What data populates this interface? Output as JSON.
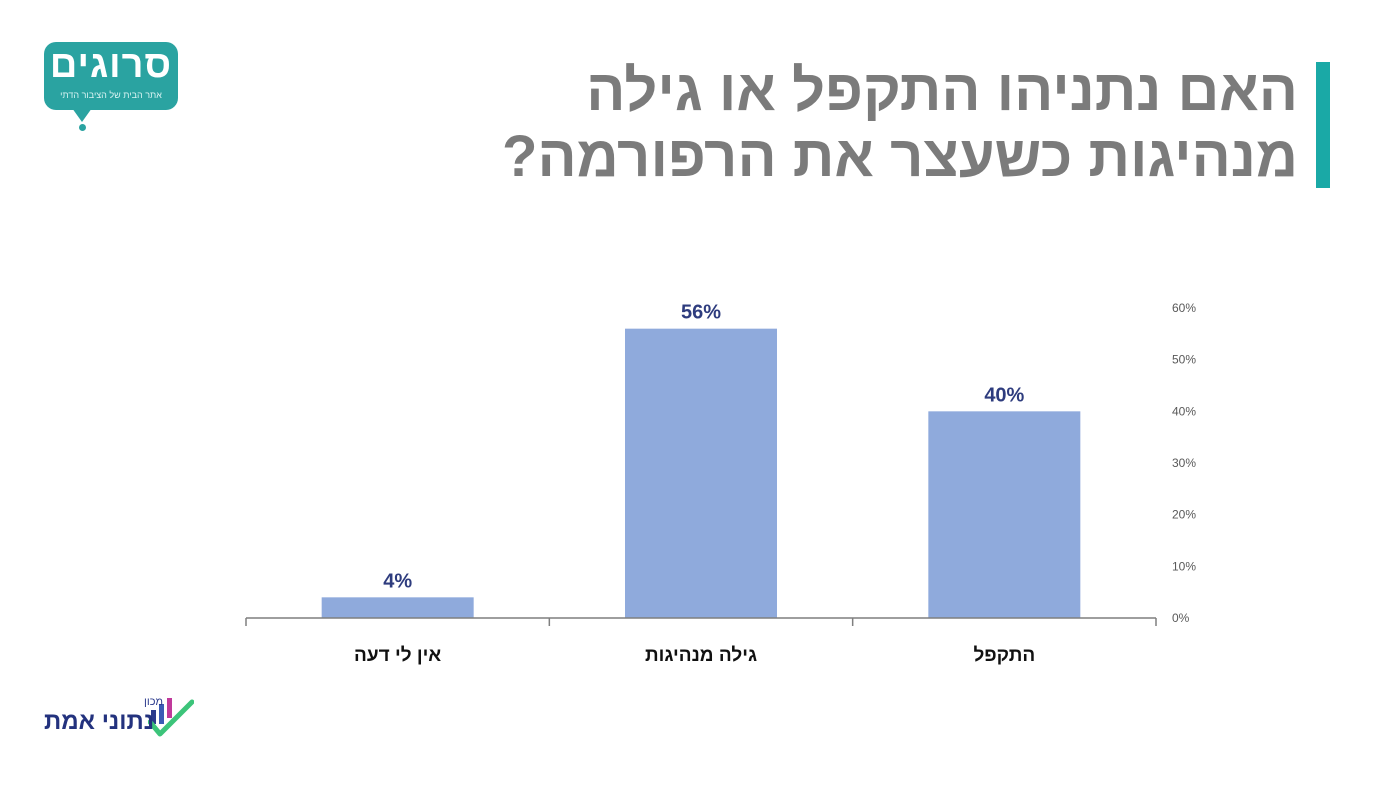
{
  "title": {
    "line1": "האם נתניהו התקפל או גילה",
    "line2": "מנהיגות כשעצר את הרפורמה?"
  },
  "logos": {
    "top_main": "סרוגים",
    "top_sub": "אתר הבית של הציבור הדתי",
    "bottom_small": "מכון",
    "bottom_name": "נתוני אמת"
  },
  "colors": {
    "bar": "#8faadc",
    "label": "#2e3c7e",
    "title": "#7b7b7b",
    "accent": "#1aa9a6"
  },
  "chart_data": {
    "type": "bar",
    "title": "האם נתניהו התקפל או גילה מנהיגות כשעצר את הרפורמה?",
    "categories": [
      "התקפל",
      "גילה מנהיגות",
      "אין לי דעה"
    ],
    "values": [
      40,
      56,
      4
    ],
    "data_labels": [
      "40%",
      "56%",
      "4%"
    ],
    "ylim": [
      0,
      60
    ],
    "yticks": [
      "0%",
      "10%",
      "20%",
      "30%",
      "40%",
      "50%",
      "60%"
    ],
    "y_axis_side": "right",
    "category_order": "right-to-left",
    "grid": false,
    "legend": "none"
  }
}
